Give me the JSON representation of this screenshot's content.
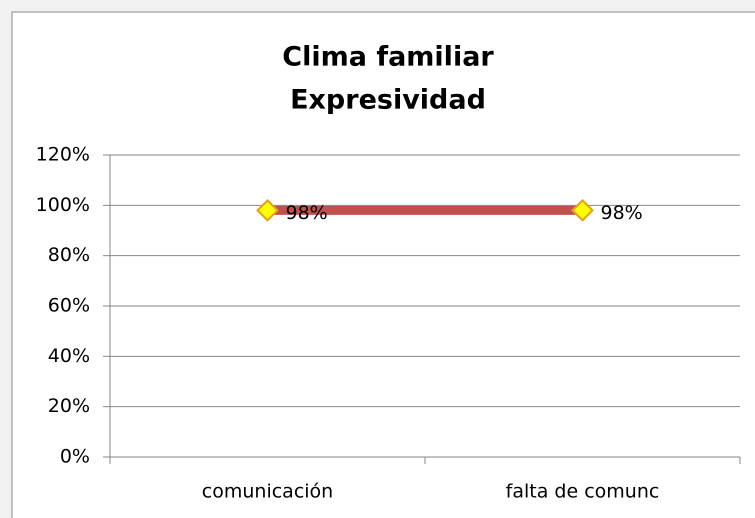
{
  "chart_data": {
    "type": "line",
    "title": "Clima familiar",
    "subtitle": "Expresividad",
    "categories": [
      "comunicación",
      "falta de comunc"
    ],
    "series": [
      {
        "color": "#c0504d",
        "marker_fill": "#ffff00",
        "marker_edge": "#e3a21a",
        "values": [
          98,
          98
        ],
        "value_labels": [
          "98%",
          "98%"
        ]
      }
    ],
    "ylim": [
      0,
      120
    ],
    "yticks": [
      {
        "value": 0,
        "label": "0%"
      },
      {
        "value": 20,
        "label": "20%"
      },
      {
        "value": 40,
        "label": "40%"
      },
      {
        "value": 60,
        "label": "60%"
      },
      {
        "value": 80,
        "label": "80%"
      },
      {
        "value": 100,
        "label": "100%"
      },
      {
        "value": 120,
        "label": "120%"
      }
    ],
    "grid": true
  }
}
